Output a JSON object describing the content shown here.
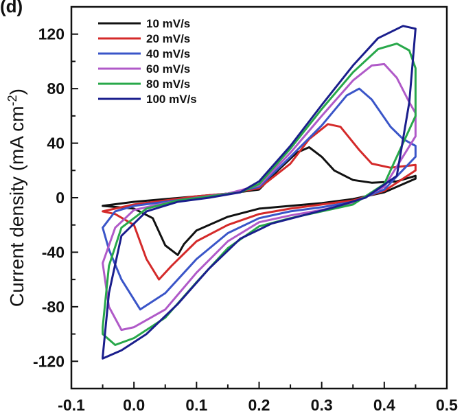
{
  "panel_label": "(d)",
  "chart_data": {
    "type": "line",
    "title": "",
    "xlabel": "",
    "ylabel": "Current density (mA cm",
    "ylabel_sup": "-2",
    "ylabel_close": ")",
    "xlim": [
      -0.1,
      0.5
    ],
    "ylim": [
      -140,
      140
    ],
    "xticks": [
      -0.1,
      0.0,
      0.1,
      0.2,
      0.3,
      0.4,
      0.5
    ],
    "xtick_labels": [
      "-0.1",
      "0.0",
      "0.1",
      "0.2",
      "0.3",
      "0.4",
      "0.5"
    ],
    "yticks": [
      -120,
      -80,
      -40,
      0,
      40,
      80,
      120
    ],
    "ytick_labels": [
      "-120",
      "-80",
      "-40",
      "0",
      "40",
      "80",
      "120"
    ],
    "grid": false,
    "legend_position": "top-left",
    "series": [
      {
        "name": "10 mV/s",
        "color": "#111111",
        "points": [
          [
            -0.05,
            -6
          ],
          [
            0.0,
            -3
          ],
          [
            0.05,
            -1
          ],
          [
            0.1,
            1
          ],
          [
            0.15,
            3
          ],
          [
            0.2,
            6
          ],
          [
            0.23,
            20
          ],
          [
            0.26,
            33
          ],
          [
            0.28,
            37
          ],
          [
            0.3,
            30
          ],
          [
            0.32,
            20
          ],
          [
            0.35,
            13
          ],
          [
            0.38,
            11
          ],
          [
            0.42,
            12
          ],
          [
            0.45,
            16
          ],
          [
            0.45,
            14
          ],
          [
            0.4,
            4
          ],
          [
            0.35,
            -1
          ],
          [
            0.3,
            -4
          ],
          [
            0.25,
            -6
          ],
          [
            0.2,
            -8
          ],
          [
            0.15,
            -14
          ],
          [
            0.1,
            -24
          ],
          [
            0.08,
            -34
          ],
          [
            0.07,
            -42
          ],
          [
            0.05,
            -35
          ],
          [
            0.03,
            -15
          ],
          [
            0.0,
            -8
          ],
          [
            -0.05,
            -6
          ]
        ]
      },
      {
        "name": "20 mV/s",
        "color": "#d42a2a",
        "points": [
          [
            -0.05,
            -10
          ],
          [
            0.0,
            -5
          ],
          [
            0.05,
            -2
          ],
          [
            0.1,
            1
          ],
          [
            0.15,
            3
          ],
          [
            0.2,
            7
          ],
          [
            0.25,
            25
          ],
          [
            0.28,
            43
          ],
          [
            0.31,
            54
          ],
          [
            0.33,
            52
          ],
          [
            0.36,
            35
          ],
          [
            0.38,
            25
          ],
          [
            0.41,
            22
          ],
          [
            0.45,
            24
          ],
          [
            0.45,
            20
          ],
          [
            0.4,
            5
          ],
          [
            0.35,
            -2
          ],
          [
            0.3,
            -5
          ],
          [
            0.25,
            -8
          ],
          [
            0.2,
            -12
          ],
          [
            0.15,
            -20
          ],
          [
            0.1,
            -32
          ],
          [
            0.06,
            -50
          ],
          [
            0.04,
            -60
          ],
          [
            0.02,
            -45
          ],
          [
            0.0,
            -20
          ],
          [
            -0.03,
            -12
          ],
          [
            -0.05,
            -10
          ]
        ]
      },
      {
        "name": "40 mV/s",
        "color": "#3a55c8",
        "points": [
          [
            -0.05,
            -22
          ],
          [
            -0.03,
            -10
          ],
          [
            0.0,
            -6
          ],
          [
            0.05,
            -3
          ],
          [
            0.1,
            0
          ],
          [
            0.15,
            3
          ],
          [
            0.2,
            8
          ],
          [
            0.25,
            30
          ],
          [
            0.3,
            53
          ],
          [
            0.34,
            75
          ],
          [
            0.36,
            80
          ],
          [
            0.38,
            72
          ],
          [
            0.41,
            52
          ],
          [
            0.43,
            43
          ],
          [
            0.45,
            38
          ],
          [
            0.45,
            30
          ],
          [
            0.4,
            6
          ],
          [
            0.35,
            -3
          ],
          [
            0.3,
            -7
          ],
          [
            0.25,
            -10
          ],
          [
            0.2,
            -15
          ],
          [
            0.15,
            -26
          ],
          [
            0.1,
            -45
          ],
          [
            0.05,
            -70
          ],
          [
            0.01,
            -82
          ],
          [
            -0.02,
            -60
          ],
          [
            -0.04,
            -38
          ],
          [
            -0.05,
            -22
          ]
        ]
      },
      {
        "name": "60 mV/s",
        "color": "#b05ac8",
        "points": [
          [
            -0.05,
            -48
          ],
          [
            -0.03,
            -22
          ],
          [
            0.0,
            -9
          ],
          [
            0.05,
            -4
          ],
          [
            0.1,
            0
          ],
          [
            0.15,
            3
          ],
          [
            0.2,
            9
          ],
          [
            0.25,
            33
          ],
          [
            0.3,
            60
          ],
          [
            0.35,
            86
          ],
          [
            0.38,
            97
          ],
          [
            0.4,
            98
          ],
          [
            0.42,
            88
          ],
          [
            0.44,
            70
          ],
          [
            0.45,
            62
          ],
          [
            0.45,
            45
          ],
          [
            0.4,
            8
          ],
          [
            0.35,
            -4
          ],
          [
            0.3,
            -9
          ],
          [
            0.25,
            -13
          ],
          [
            0.2,
            -18
          ],
          [
            0.15,
            -32
          ],
          [
            0.1,
            -55
          ],
          [
            0.05,
            -82
          ],
          [
            0.0,
            -95
          ],
          [
            -0.02,
            -97
          ],
          [
            -0.04,
            -80
          ],
          [
            -0.05,
            -48
          ]
        ]
      },
      {
        "name": "80 mV/s",
        "color": "#28a84a",
        "points": [
          [
            -0.05,
            -95
          ],
          [
            -0.04,
            -50
          ],
          [
            -0.02,
            -22
          ],
          [
            0.02,
            -8
          ],
          [
            0.07,
            -2
          ],
          [
            0.12,
            1
          ],
          [
            0.17,
            4
          ],
          [
            0.2,
            10
          ],
          [
            0.25,
            36
          ],
          [
            0.3,
            65
          ],
          [
            0.35,
            92
          ],
          [
            0.39,
            109
          ],
          [
            0.42,
            113
          ],
          [
            0.44,
            108
          ],
          [
            0.45,
            95
          ],
          [
            0.45,
            60
          ],
          [
            0.4,
            10
          ],
          [
            0.35,
            -5
          ],
          [
            0.3,
            -10
          ],
          [
            0.25,
            -15
          ],
          [
            0.2,
            -21
          ],
          [
            0.15,
            -37
          ],
          [
            0.1,
            -62
          ],
          [
            0.05,
            -88
          ],
          [
            0.0,
            -103
          ],
          [
            -0.03,
            -108
          ],
          [
            -0.05,
            -100
          ],
          [
            -0.05,
            -95
          ]
        ]
      },
      {
        "name": "100 mV/s",
        "color": "#1a1e8c",
        "points": [
          [
            -0.05,
            -117
          ],
          [
            -0.04,
            -70
          ],
          [
            -0.02,
            -28
          ],
          [
            0.02,
            -10
          ],
          [
            0.07,
            -3
          ],
          [
            0.12,
            0
          ],
          [
            0.17,
            4
          ],
          [
            0.2,
            12
          ],
          [
            0.25,
            38
          ],
          [
            0.3,
            68
          ],
          [
            0.35,
            97
          ],
          [
            0.39,
            117
          ],
          [
            0.43,
            126
          ],
          [
            0.45,
            124
          ],
          [
            0.44,
            70
          ],
          [
            0.42,
            16
          ],
          [
            0.37,
            0
          ],
          [
            0.32,
            -7
          ],
          [
            0.27,
            -13
          ],
          [
            0.22,
            -19
          ],
          [
            0.17,
            -30
          ],
          [
            0.12,
            -52
          ],
          [
            0.07,
            -78
          ],
          [
            0.02,
            -100
          ],
          [
            -0.02,
            -112
          ],
          [
            -0.05,
            -118
          ],
          [
            -0.05,
            -117
          ]
        ]
      }
    ]
  }
}
